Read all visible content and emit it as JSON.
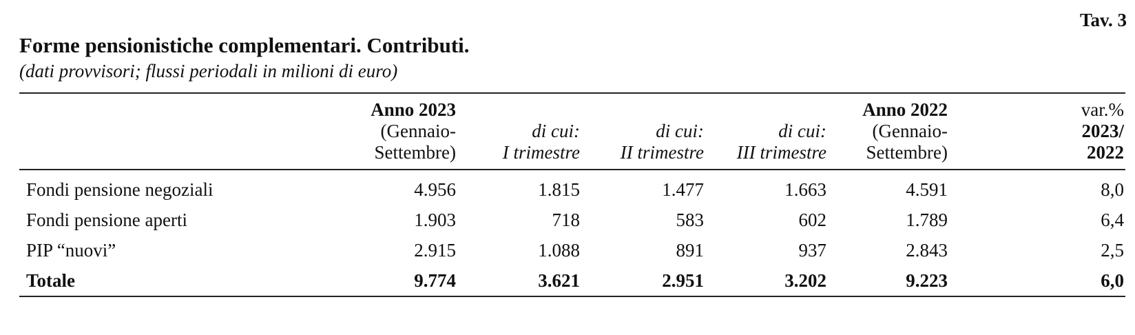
{
  "table_ref": "Tav. 3",
  "title": "Forme pensionistiche complementari. Contributi.",
  "subtitle": "(dati provvisori; flussi periodali in milioni di euro)",
  "columns": [
    {
      "bold": "Anno 2023",
      "lines": [
        "(Gennaio-",
        "Settembre)"
      ]
    },
    {
      "italic_lines": [
        "di cui:",
        "I trimestre"
      ]
    },
    {
      "italic_lines": [
        "di cui:",
        "II trimestre"
      ]
    },
    {
      "italic_lines": [
        "di cui:",
        "III trimestre"
      ]
    },
    {
      "bold": "Anno 2022",
      "lines": [
        "(Gennaio-",
        "Settembre)"
      ]
    },
    {
      "plain": "var.%",
      "bold_lines": [
        "2023/",
        "2022"
      ]
    }
  ],
  "rows": [
    {
      "label": "Fondi pensione negoziali",
      "values": [
        "4.956",
        "1.815",
        "1.477",
        "1.663",
        "4.591",
        "8,0"
      ]
    },
    {
      "label": "Fondi pensione aperti",
      "values": [
        "1.903",
        "718",
        "583",
        "602",
        "1.789",
        "6,4"
      ]
    },
    {
      "label": "PIP “nuovi”",
      "values": [
        "2.915",
        "1.088",
        "891",
        "937",
        "2.843",
        "2,5"
      ]
    },
    {
      "label": "Totale",
      "values": [
        "9.774",
        "3.621",
        "2.951",
        "3.202",
        "9.223",
        "6,0"
      ]
    }
  ]
}
